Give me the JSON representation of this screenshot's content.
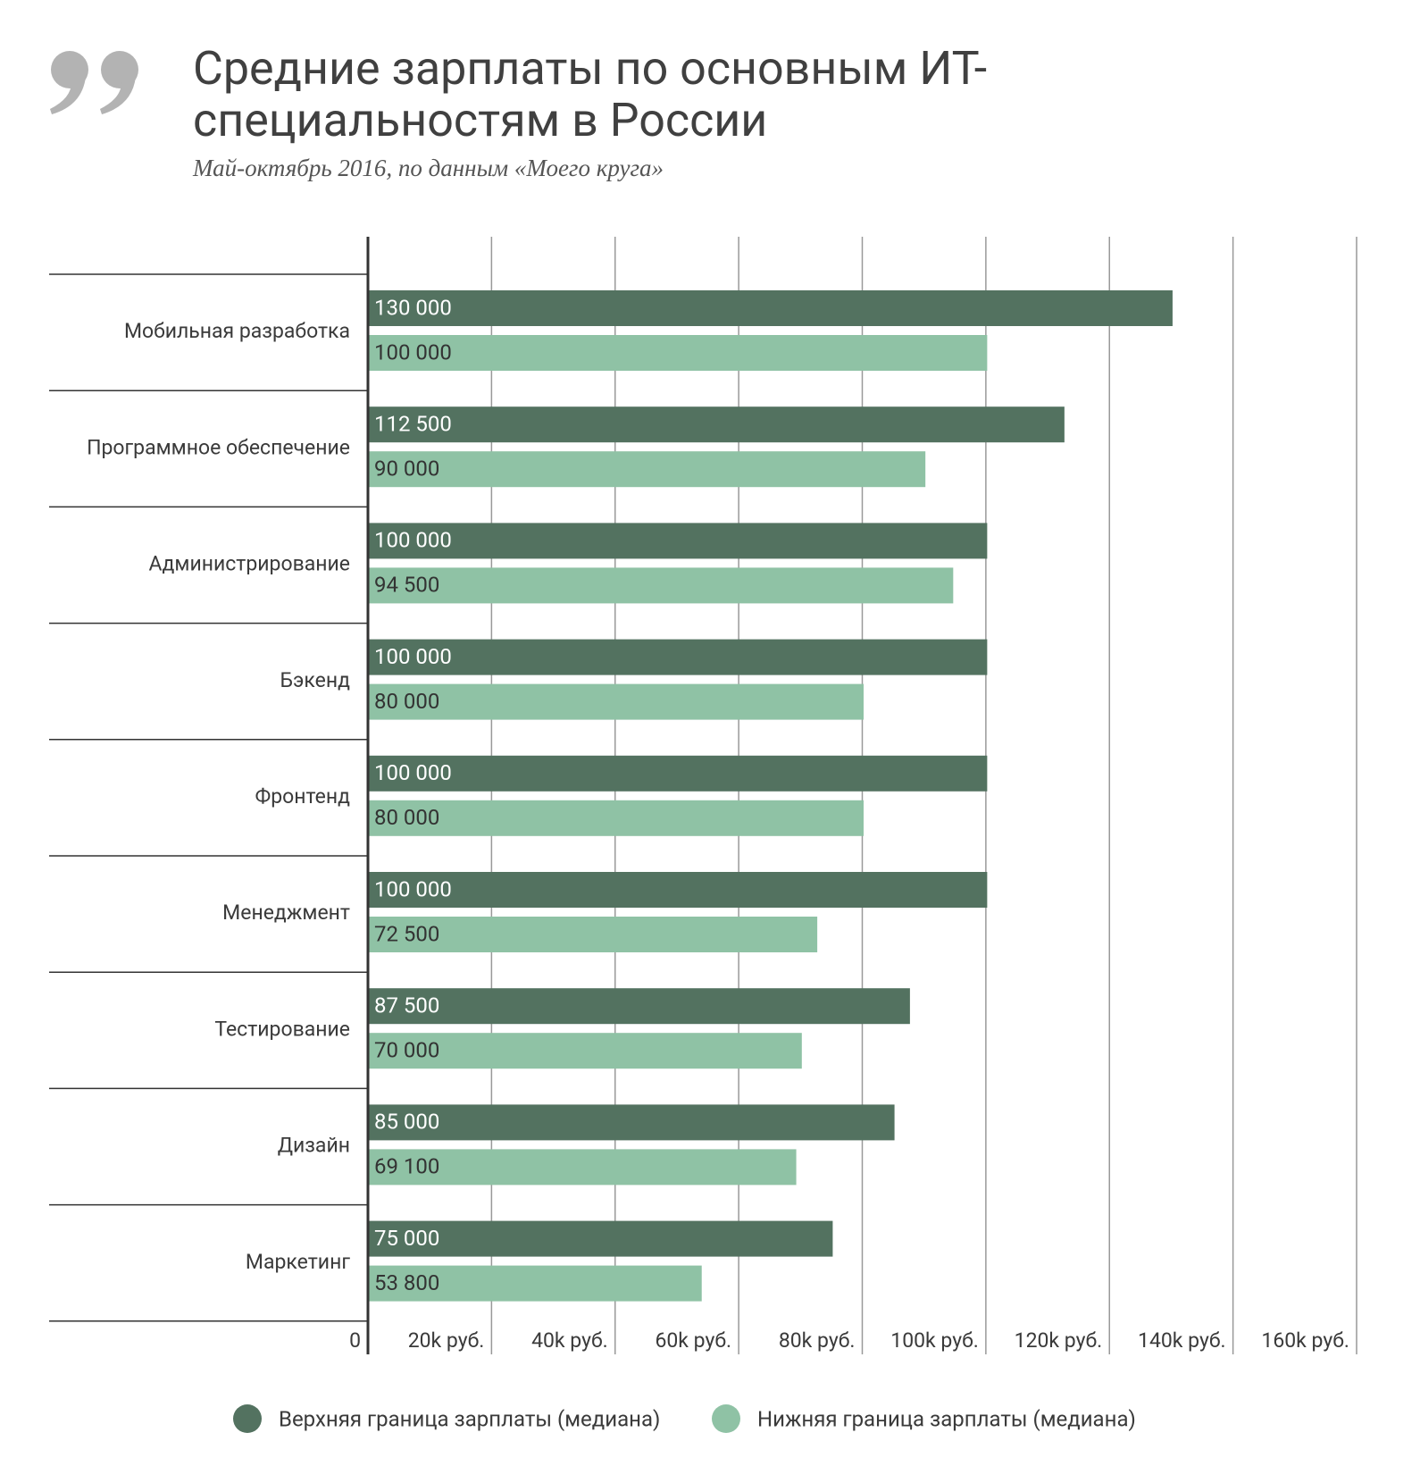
{
  "chart_data": {
    "type": "bar",
    "orientation": "horizontal",
    "title": "Средние зарплаты по основным ИТ-специальностям в России",
    "subtitle": "Май-октябрь 2016,  по данным «Моего круга»",
    "categories": [
      "Мобильная разработка",
      "Программное обеспечение",
      "Администрирование",
      "Бэкенд",
      "Фронтенд",
      "Менеджмент",
      "Тестирование",
      "Дизайн",
      "Маркетинг"
    ],
    "series": [
      {
        "name": "Верхняя граница зарплаты (медиана)",
        "color": "#537260",
        "values": [
          130000,
          112500,
          100000,
          100000,
          100000,
          100000,
          87500,
          85000,
          75000
        ],
        "value_labels": [
          "130 000",
          "112 500",
          "100 000",
          "100 000",
          "100 000",
          "100 000",
          "87 500",
          "85 000",
          "75 000"
        ]
      },
      {
        "name": "Нижняя граница зарплаты (медиана)",
        "color": "#8fc2a5",
        "values": [
          100000,
          90000,
          94500,
          80000,
          80000,
          72500,
          70000,
          69100,
          53800
        ],
        "value_labels": [
          "100 000",
          "90 000",
          "94 500",
          "80 000",
          "80 000",
          "72 500",
          "70 000",
          "69 100",
          "53 800"
        ]
      }
    ],
    "xlim": [
      0,
      160000
    ],
    "xticks": [
      0,
      {
        "value": 20000,
        "label": "20k руб."
      },
      {
        "value": 40000,
        "label": "40k руб."
      },
      {
        "value": 60000,
        "label": "60k руб."
      },
      {
        "value": 80000,
        "label": "80k руб."
      },
      {
        "value": 100000,
        "label": "100k руб."
      },
      {
        "value": 120000,
        "label": "120k руб."
      },
      {
        "value": 140000,
        "label": "140k руб."
      },
      {
        "value": 160000,
        "label": "160k руб."
      }
    ],
    "grid": true,
    "legend": "bottom"
  }
}
